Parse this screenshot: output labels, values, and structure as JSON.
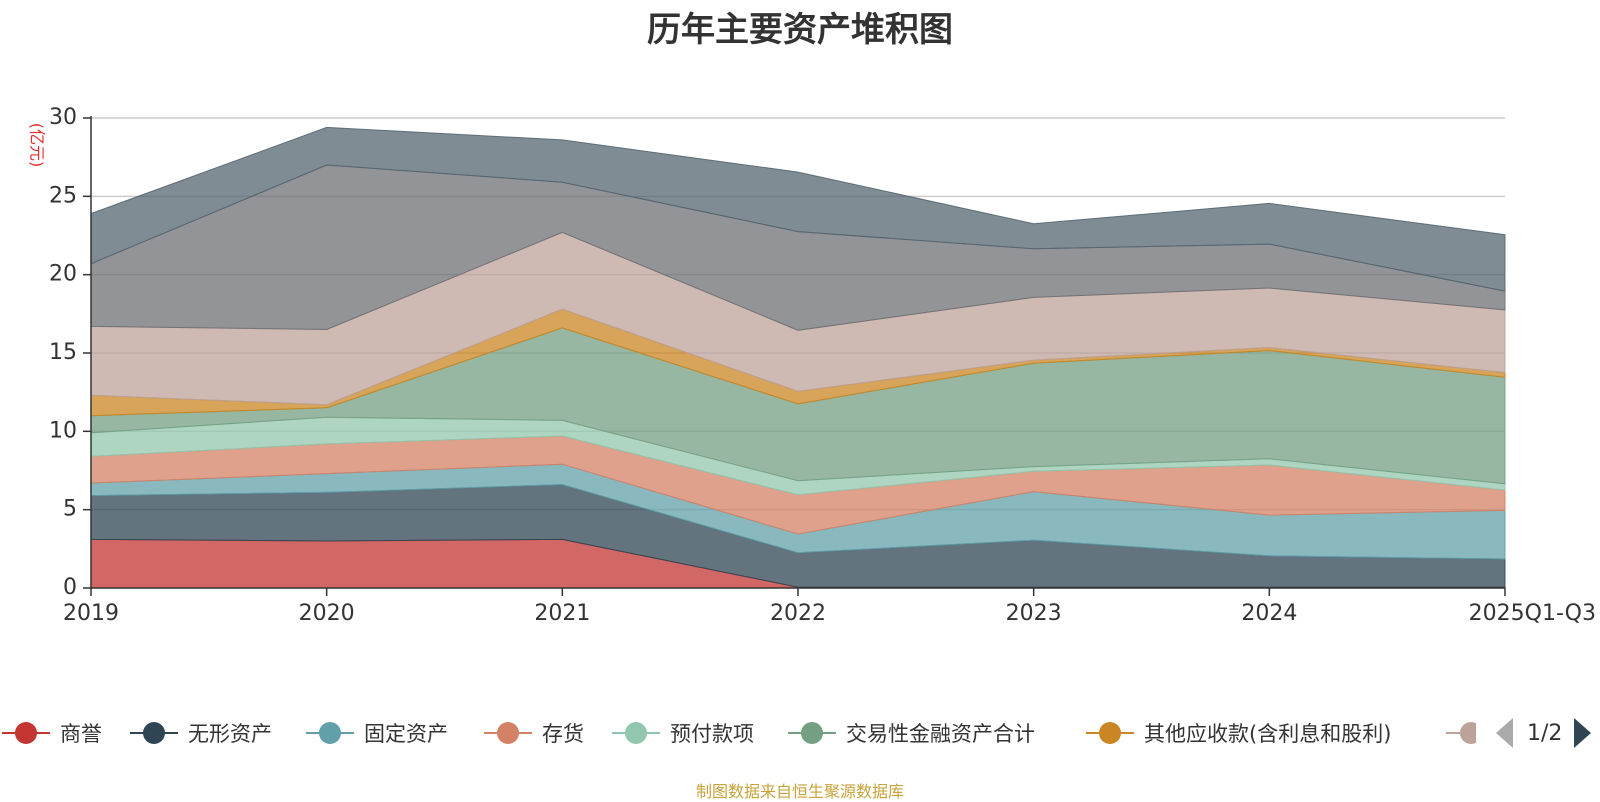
{
  "chart_data": {
    "type": "area",
    "title": "历年主要资产堆积图",
    "ylabel": "(亿元)",
    "xlabel": "",
    "ylim": [
      0,
      30
    ],
    "yticks": [
      0,
      5,
      10,
      15,
      20,
      25,
      30
    ],
    "categories": [
      "2019",
      "2020",
      "2021",
      "2022",
      "2023",
      "2024",
      "2025Q1-Q3"
    ],
    "stacked": true,
    "grid": true,
    "series": [
      {
        "name": "商誉",
        "color": "#c23531",
        "values": [
          3.1,
          3.0,
          3.1,
          0.05,
          0.05,
          0.05,
          0.05
        ]
      },
      {
        "name": "无形资产",
        "color": "#2f4554",
        "values": [
          2.8,
          3.1,
          3.5,
          2.2,
          3.0,
          2.0,
          1.8
        ]
      },
      {
        "name": "固定资产",
        "color": "#61a0a8",
        "values": [
          0.8,
          1.2,
          1.3,
          1.2,
          3.1,
          2.6,
          3.1
        ]
      },
      {
        "name": "存货",
        "color": "#d48265",
        "values": [
          1.7,
          1.9,
          1.8,
          2.5,
          1.3,
          3.2,
          1.3
        ]
      },
      {
        "name": "预付款项",
        "color": "#91c7ae",
        "values": [
          1.5,
          1.7,
          1.0,
          0.9,
          0.3,
          0.4,
          0.4
        ]
      },
      {
        "name": "交易性金融资产合计",
        "color": "#749f83",
        "values": [
          1.1,
          0.6,
          5.9,
          4.9,
          6.6,
          6.9,
          6.8
        ]
      },
      {
        "name": "其他应收款(含利息和股利)",
        "color": "#ca8622",
        "values": [
          1.3,
          0.2,
          1.2,
          0.8,
          0.2,
          0.2,
          0.3
        ]
      },
      {
        "name": "",
        "color": "#bda29a",
        "values": [
          4.4,
          4.8,
          4.9,
          3.9,
          4.0,
          3.8,
          4.0
        ]
      },
      {
        "name": "",
        "color": "#6e7074",
        "values": [
          4.0,
          10.5,
          3.2,
          6.3,
          3.1,
          2.8,
          1.2
        ]
      },
      {
        "name": "",
        "color": "#546570",
        "values": [
          3.2,
          2.4,
          2.7,
          3.8,
          1.6,
          2.6,
          3.6
        ]
      }
    ]
  },
  "legend": {
    "items": [
      {
        "label": "商誉",
        "color": "#c23531"
      },
      {
        "label": "无形资产",
        "color": "#2f4554"
      },
      {
        "label": "固定资产",
        "color": "#61a0a8"
      },
      {
        "label": "存货",
        "color": "#d48265"
      },
      {
        "label": "预付款项",
        "color": "#91c7ae"
      },
      {
        "label": "交易性金融资产合计",
        "color": "#749f83"
      },
      {
        "label": "其他应收款(含利息和股利)",
        "color": "#ca8622"
      },
      {
        "label": "",
        "color": "#bda29a"
      }
    ],
    "page_text": "1/2"
  },
  "footer": {
    "source_text": "制图数据来自恒生聚源数据库"
  }
}
